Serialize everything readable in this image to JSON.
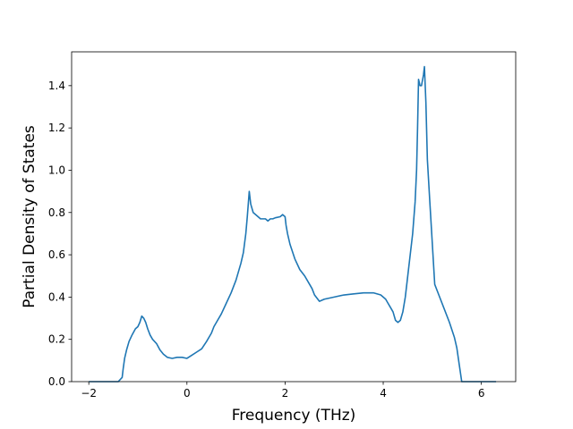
{
  "chart_data": {
    "type": "line",
    "title": "",
    "xlabel": "Frequency (THz)",
    "ylabel": "Partial Density of States",
    "xlim": [
      -2.35,
      6.7
    ],
    "ylim": [
      0.0,
      1.56
    ],
    "grid": false,
    "legend": "none",
    "x_ticks": [
      -2,
      0,
      2,
      4,
      6
    ],
    "x_tick_labels": [
      "−2",
      "0",
      "2",
      "4",
      "6"
    ],
    "y_ticks": [
      0.0,
      0.2,
      0.4,
      0.6,
      0.8,
      1.0,
      1.2,
      1.4
    ],
    "y_tick_labels": [
      "0.0",
      "0.2",
      "0.4",
      "0.6",
      "0.8",
      "1.0",
      "1.2",
      "1.4"
    ],
    "colors": {
      "line": "#1f77b4",
      "axes": "#000000"
    },
    "series": [
      {
        "x": [
          -2.0,
          -1.4,
          -1.32,
          -1.3,
          -1.27,
          -1.23,
          -1.18,
          -1.12,
          -1.05,
          -1.0,
          -0.96,
          -0.92,
          -0.88,
          -0.84,
          -0.8,
          -0.75,
          -0.7,
          -0.62,
          -0.55,
          -0.48,
          -0.4,
          -0.3,
          -0.2,
          -0.1,
          0.0,
          0.1,
          0.2,
          0.3,
          0.4,
          0.5,
          0.55,
          0.6,
          0.7,
          0.8,
          0.9,
          1.0,
          1.1,
          1.15,
          1.2,
          1.23,
          1.25,
          1.27,
          1.3,
          1.35,
          1.4,
          1.5,
          1.55,
          1.6,
          1.65,
          1.7,
          1.75,
          1.8,
          1.9,
          1.95,
          2.0,
          2.02,
          2.05,
          2.1,
          2.2,
          2.3,
          2.4,
          2.5,
          2.55,
          2.6,
          2.7,
          2.8,
          3.0,
          3.2,
          3.4,
          3.6,
          3.8,
          3.95,
          4.05,
          4.1,
          4.15,
          4.2,
          4.25,
          4.3,
          4.35,
          4.4,
          4.45,
          4.5,
          4.55,
          4.6,
          4.65,
          4.68,
          4.7,
          4.72,
          4.75,
          4.78,
          4.82,
          4.84,
          4.87,
          4.9,
          4.95,
          5.05,
          5.15,
          5.25,
          5.35,
          5.45,
          5.5,
          5.55,
          5.6,
          5.65,
          6.0,
          6.3
        ],
        "y": [
          0.0,
          0.0,
          0.02,
          0.06,
          0.11,
          0.15,
          0.19,
          0.22,
          0.25,
          0.26,
          0.28,
          0.31,
          0.3,
          0.28,
          0.25,
          0.22,
          0.2,
          0.18,
          0.15,
          0.13,
          0.115,
          0.11,
          0.115,
          0.115,
          0.11,
          0.125,
          0.14,
          0.155,
          0.19,
          0.23,
          0.26,
          0.28,
          0.32,
          0.37,
          0.42,
          0.48,
          0.56,
          0.61,
          0.7,
          0.78,
          0.84,
          0.9,
          0.84,
          0.8,
          0.79,
          0.77,
          0.77,
          0.77,
          0.76,
          0.77,
          0.77,
          0.775,
          0.78,
          0.79,
          0.78,
          0.74,
          0.7,
          0.65,
          0.58,
          0.53,
          0.5,
          0.46,
          0.44,
          0.41,
          0.38,
          0.39,
          0.4,
          0.41,
          0.415,
          0.42,
          0.42,
          0.41,
          0.39,
          0.37,
          0.35,
          0.33,
          0.29,
          0.28,
          0.29,
          0.33,
          0.4,
          0.5,
          0.6,
          0.7,
          0.85,
          1.0,
          1.2,
          1.43,
          1.4,
          1.4,
          1.45,
          1.49,
          1.32,
          1.05,
          0.85,
          0.46,
          0.4,
          0.34,
          0.28,
          0.21,
          0.16,
          0.08,
          0.0,
          0.0,
          0.0,
          0.0
        ]
      }
    ]
  }
}
